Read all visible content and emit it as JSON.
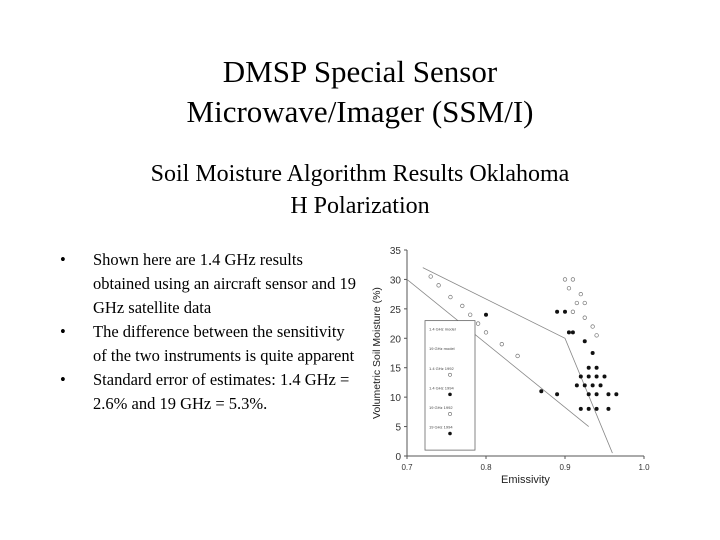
{
  "title_line1": "DMSP Special Sensor",
  "title_line2": "Microwave/Imager (SSM/I)",
  "subtitle_line1": "Soil Moisture Algorithm Results Oklahoma",
  "subtitle_line2": "H Polarization",
  "bullet_symbol": "•",
  "bullets": [
    "Shown here are 1.4 GHz results obtained using an aircraft sensor and 19 GHz satellite data",
    "The difference between the sensitivity of the two instruments is quite apparent",
    "Standard error of estimates: 1.4 GHz = 2.6% and 19 GHz = 5.3%."
  ],
  "chart_data": {
    "type": "scatter",
    "xlabel": "Emissivity",
    "ylabel": "Volumetric Soil Moisture (%)",
    "xlim": [
      0.7,
      1.0
    ],
    "ylim": [
      0,
      35
    ],
    "x_ticks": [
      "0.7",
      "0.8",
      "0.9",
      "1.0"
    ],
    "y_ticks": [
      "0",
      "5",
      "10",
      "15",
      "20",
      "25",
      "30",
      "35"
    ],
    "legend_position": "inside-left",
    "legend_entries": [
      "1.4 GHz model",
      "19 GHz model",
      "1.4 GHz 1992",
      "1.4 GHz 1994",
      "19 GHz 1992",
      "19 GHz 1994"
    ],
    "lines": [
      {
        "points": [
          [
            0.7,
            30.0
          ],
          [
            0.93,
            5.0
          ]
        ]
      },
      {
        "points": [
          [
            0.72,
            32.0
          ],
          [
            0.9,
            20.0
          ],
          [
            0.96,
            0.5
          ]
        ]
      }
    ],
    "series": [
      {
        "marker": "open",
        "values": [
          [
            0.73,
            30.5
          ],
          [
            0.74,
            29.0
          ],
          [
            0.755,
            27.0
          ],
          [
            0.77,
            25.5
          ],
          [
            0.78,
            24.0
          ],
          [
            0.79,
            22.5
          ],
          [
            0.8,
            21.0
          ],
          [
            0.82,
            19.0
          ],
          [
            0.84,
            17.0
          ],
          [
            0.9,
            30.0
          ],
          [
            0.91,
            30.0
          ],
          [
            0.905,
            28.5
          ],
          [
            0.92,
            27.5
          ],
          [
            0.915,
            26.0
          ],
          [
            0.925,
            26.0
          ],
          [
            0.91,
            24.5
          ],
          [
            0.925,
            23.5
          ],
          [
            0.935,
            22.0
          ],
          [
            0.94,
            20.5
          ]
        ]
      },
      {
        "marker": "filled",
        "values": [
          [
            0.8,
            24.0
          ],
          [
            0.89,
            24.5
          ],
          [
            0.9,
            24.5
          ],
          [
            0.905,
            21.0
          ],
          [
            0.91,
            21.0
          ],
          [
            0.925,
            19.5
          ],
          [
            0.935,
            17.5
          ],
          [
            0.93,
            15.0
          ],
          [
            0.94,
            15.0
          ],
          [
            0.92,
            13.5
          ],
          [
            0.93,
            13.5
          ],
          [
            0.94,
            13.5
          ],
          [
            0.95,
            13.5
          ],
          [
            0.915,
            12.0
          ],
          [
            0.925,
            12.0
          ],
          [
            0.935,
            12.0
          ],
          [
            0.945,
            12.0
          ],
          [
            0.93,
            10.5
          ],
          [
            0.94,
            10.5
          ],
          [
            0.955,
            10.5
          ],
          [
            0.965,
            10.5
          ],
          [
            0.92,
            8.0
          ],
          [
            0.93,
            8.0
          ],
          [
            0.94,
            8.0
          ],
          [
            0.955,
            8.0
          ],
          [
            0.87,
            11.0
          ],
          [
            0.89,
            10.5
          ]
        ]
      }
    ]
  }
}
